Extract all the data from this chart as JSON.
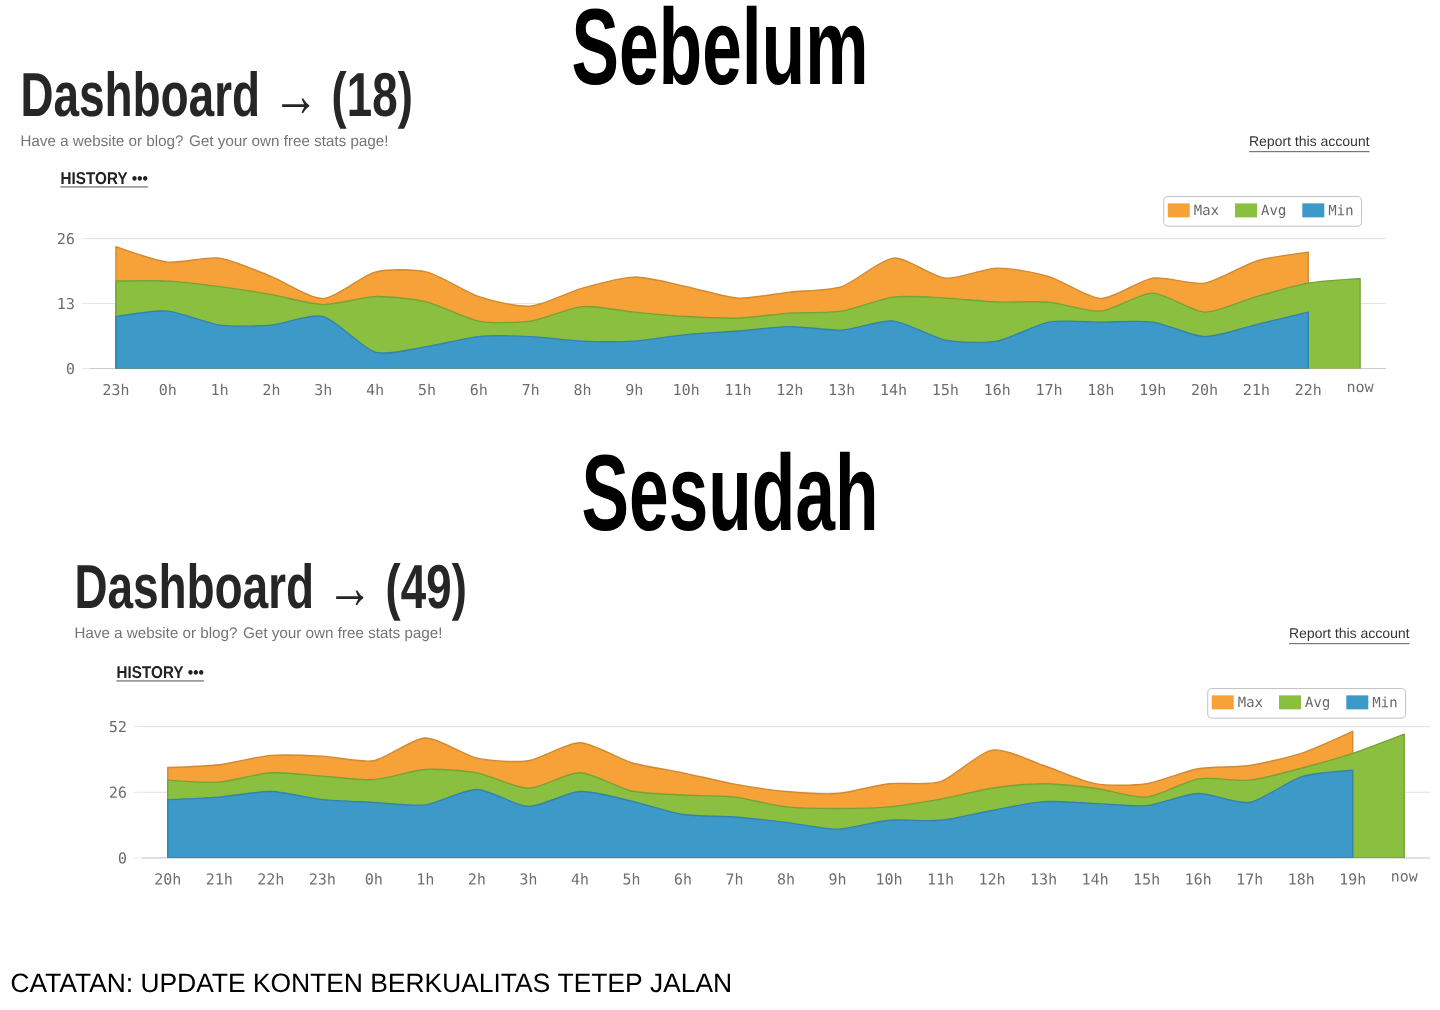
{
  "chart_data": [
    {
      "type": "area",
      "title": "Dashboard → (18)",
      "subtitle": "Have a website or blog? Get your own free stats page!",
      "annotations": [
        "Sebelum",
        "Report this account",
        "HISTORY •••"
      ],
      "categories": [
        "23h",
        "0h",
        "1h",
        "2h",
        "3h",
        "4h",
        "5h",
        "6h",
        "7h",
        "8h",
        "9h",
        "10h",
        "11h",
        "12h",
        "13h",
        "14h",
        "15h",
        "16h",
        "17h",
        "18h",
        "19h",
        "20h",
        "21h",
        "22h",
        "now"
      ],
      "series": [
        {
          "name": "Max",
          "color": "#f7a139",
          "values": [
            24.4,
            21.3,
            22.1,
            18.4,
            14,
            19.3,
            19.3,
            14.4,
            12.5,
            16.1,
            18.3,
            16.4,
            14.1,
            15.3,
            16.4,
            22.1,
            18.1,
            20.1,
            18.4,
            14,
            18.1,
            17.1,
            21.5,
            23.3,
            null
          ]
        },
        {
          "name": "Avg",
          "color": "#8bbf40",
          "values": [
            17.5,
            17.5,
            16.4,
            14.8,
            12.8,
            14.4,
            13.3,
            9.5,
            9.5,
            12.4,
            11.3,
            10.4,
            10.1,
            11.1,
            11.5,
            14.3,
            14.1,
            13.3,
            13.3,
            11.5,
            15.1,
            11.3,
            14.4,
            17.1,
            18
          ]
        },
        {
          "name": "Min",
          "color": "#3d9ac8",
          "values": [
            10.4,
            11.5,
            8.7,
            8.7,
            10.4,
            3.3,
            4.4,
            6.4,
            6.4,
            5.5,
            5.5,
            6.8,
            7.5,
            8.4,
            7.7,
            9.5,
            5.7,
            5.5,
            9.3,
            9.3,
            9.3,
            6.4,
            8.8,
            11.3,
            null
          ]
        }
      ],
      "ylim": [
        0,
        26
      ],
      "yticks": [
        0,
        13,
        26
      ],
      "grid": "y",
      "legend": "top right"
    },
    {
      "type": "area",
      "title": "Dashboard → (49)",
      "subtitle": "Have a website or blog? Get your own free stats page!",
      "annotations": [
        "Sesudah",
        "Report this account",
        "HISTORY •••",
        "CATATAN: UPDATE KONTEN BERKUALITAS TETEP JALAN"
      ],
      "categories": [
        "20h",
        "21h",
        "22h",
        "23h",
        "0h",
        "1h",
        "2h",
        "3h",
        "4h",
        "5h",
        "6h",
        "7h",
        "8h",
        "9h",
        "10h",
        "11h",
        "12h",
        "13h",
        "14h",
        "15h",
        "16h",
        "17h",
        "18h",
        "19h",
        "now"
      ],
      "series": [
        {
          "name": "Max",
          "color": "#f7a139",
          "values": [
            35.8,
            36.9,
            40.6,
            40.3,
            38.5,
            47.5,
            39.5,
            38.5,
            45.6,
            37.7,
            33.7,
            29.2,
            26.3,
            25.5,
            29.4,
            30.2,
            42.7,
            36.6,
            29.4,
            29.4,
            35.3,
            36.6,
            41.4,
            50.1,
            null
          ]
        },
        {
          "name": "Avg",
          "color": "#8bbf40",
          "values": [
            30.8,
            30,
            33.7,
            32.4,
            31,
            35,
            33.7,
            27.6,
            33.7,
            26.5,
            24.9,
            24.1,
            20.2,
            19.6,
            20.2,
            23.3,
            27.6,
            29.4,
            27.6,
            24.1,
            31.3,
            30.8,
            35.5,
            41.4,
            49
          ]
        },
        {
          "name": "Min",
          "color": "#3d9ac8",
          "values": [
            23.1,
            24.1,
            26.3,
            23.1,
            22,
            21,
            27.1,
            20.4,
            26.3,
            22.5,
            17.2,
            16.2,
            14.1,
            11.4,
            14.9,
            14.9,
            18.8,
            22.3,
            21.5,
            20.7,
            25.5,
            22,
            32.1,
            34.7,
            null
          ]
        }
      ],
      "ylim": [
        0,
        52
      ],
      "yticks": [
        0,
        26,
        52
      ],
      "grid": "y",
      "legend": "top right"
    }
  ]
}
